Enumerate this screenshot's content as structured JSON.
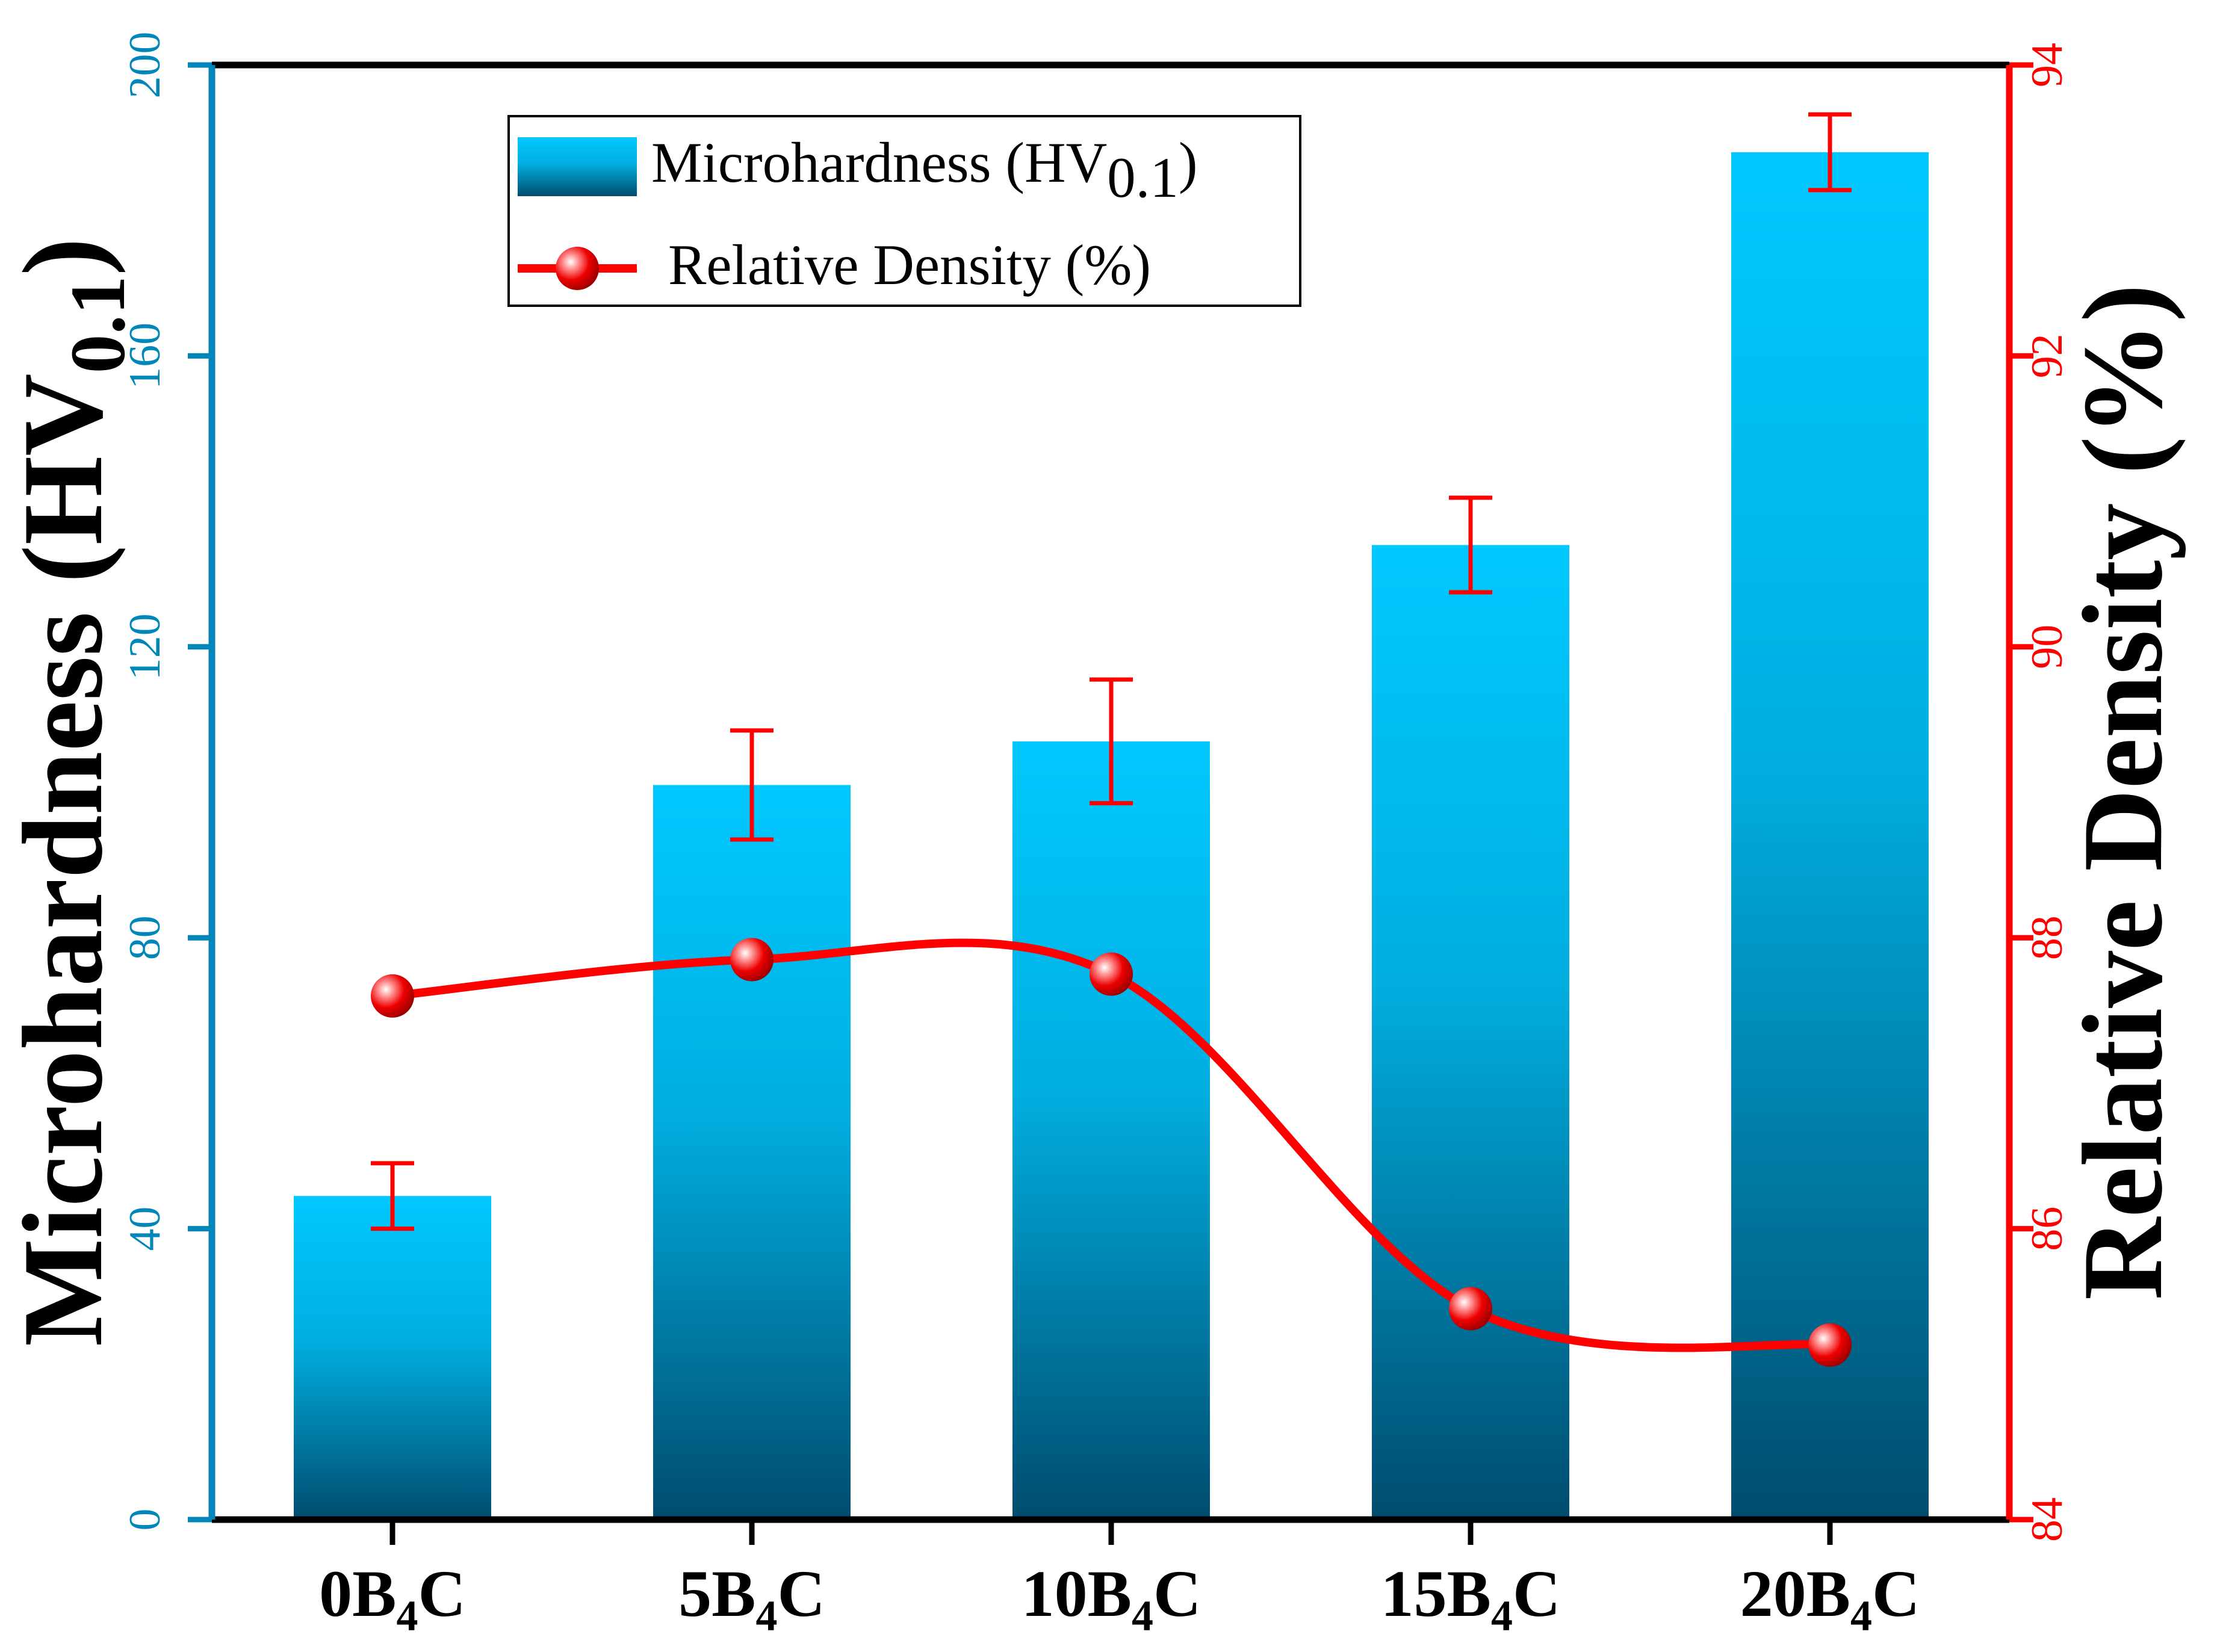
{
  "chart_data": {
    "type": "bar+line",
    "categories": [
      "0B4C",
      "5B4C",
      "10B4C",
      "15B4C",
      "20B4C"
    ],
    "category_labels": [
      {
        "pre": "0B",
        "sub": "4",
        "post": "C"
      },
      {
        "pre": "5B",
        "sub": "4",
        "post": "C"
      },
      {
        "pre": "10B",
        "sub": "4",
        "post": "C"
      },
      {
        "pre": "15B",
        "sub": "4",
        "post": "C"
      },
      {
        "pre": "20B",
        "sub": "4",
        "post": "C"
      }
    ],
    "series": [
      {
        "name": "Microhardness (HV0.1)",
        "type": "bar",
        "axis": "left",
        "values": [
          44.5,
          101,
          107,
          134,
          188
        ],
        "errors": [
          4.5,
          7.5,
          8.5,
          6.5,
          5.2
        ]
      },
      {
        "name": "Relative Density (%)",
        "type": "line",
        "axis": "right",
        "smooth": true,
        "values": [
          87.6,
          87.85,
          87.75,
          85.45,
          85.2
        ]
      }
    ],
    "left_axis": {
      "label_main": "Microhardness (HV",
      "label_sub": "0.1",
      "label_close": ")",
      "ylim": [
        0,
        200
      ],
      "ticks": [
        "0",
        "40",
        "80",
        "120",
        "160",
        "200"
      ]
    },
    "right_axis": {
      "label": "Relative Density (%)",
      "ylim": [
        84,
        94
      ],
      "ticks": [
        "84",
        "86",
        "88",
        "90",
        "92",
        "94"
      ]
    },
    "legend": {
      "position": "top-left",
      "bar_label_main": "Microhardness (HV",
      "bar_label_sub": "0.1",
      "bar_label_close": ")",
      "line_label": "Relative Density (%)"
    },
    "colors": {
      "left_axis": "#0086b8",
      "right_axis": "#ff0000",
      "bar_top": "#00c8ff",
      "bar_bottom": "#004c6e",
      "line": "#ff0000",
      "error_bar": "#ff0000"
    }
  }
}
